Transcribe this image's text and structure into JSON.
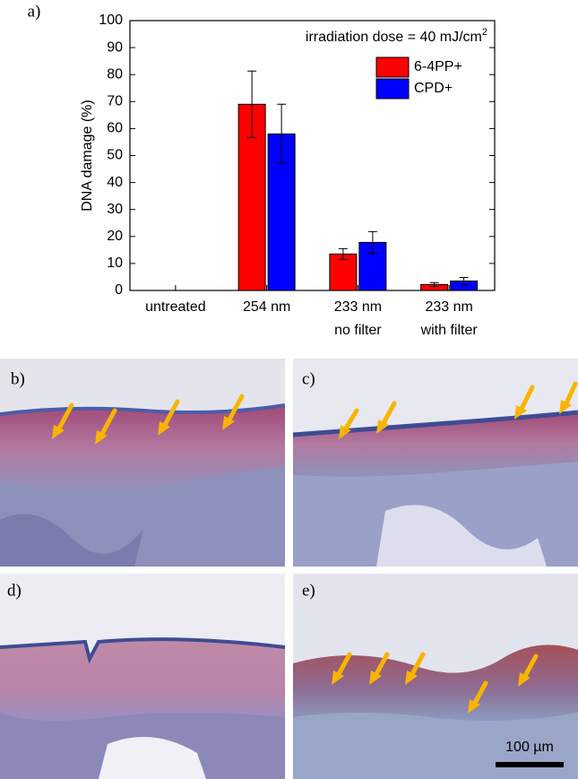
{
  "figure_label": "a)",
  "chart_data": {
    "type": "bar",
    "ylabel": "DNA damage (%)",
    "annotation": {
      "text": "irradiation dose = 40 mJ/cm",
      "sup": "2"
    },
    "categories": [
      [
        "untreated"
      ],
      [
        "254 nm"
      ],
      [
        "233 nm",
        "no filter"
      ],
      [
        "233 nm",
        "with filter"
      ]
    ],
    "series": [
      {
        "name": "6-4PP+",
        "color": "#ff0000",
        "values": [
          null,
          69,
          13.5,
          2.2
        ],
        "errors": [
          null,
          12.3,
          2,
          0.7
        ]
      },
      {
        "name": "CPD+",
        "color": "#0000ff",
        "values": [
          null,
          58,
          17.8,
          3.5
        ],
        "errors": [
          null,
          11,
          4,
          1.3
        ]
      }
    ],
    "ylim": [
      0,
      100
    ],
    "yticks": [
      0,
      10,
      20,
      30,
      40,
      50,
      60,
      70,
      80,
      90,
      100
    ],
    "legend": "upper right"
  },
  "panels": [
    {
      "label": "b)"
    },
    {
      "label": "c)"
    },
    {
      "label": "d)"
    },
    {
      "label": "e)"
    }
  ],
  "scale_bar": "100 µm"
}
